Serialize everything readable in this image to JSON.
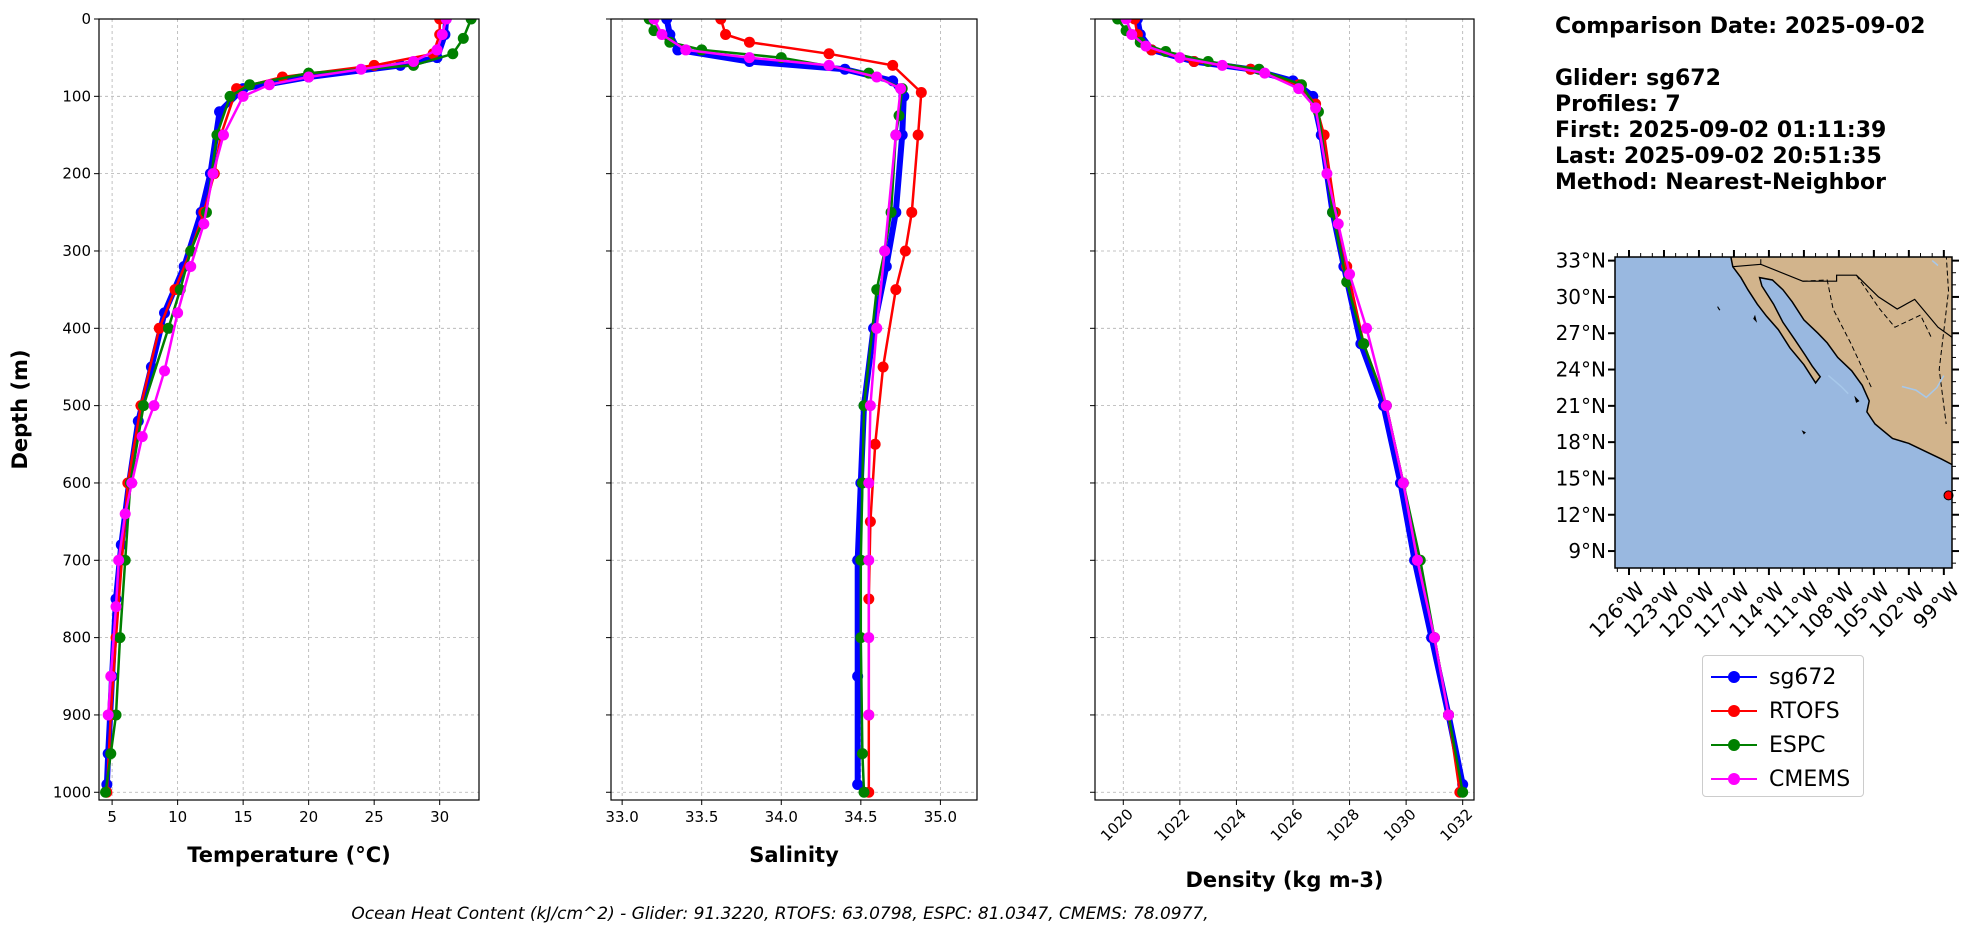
{
  "info": {
    "comparison_date": "Comparison Date: 2025-09-02",
    "glider": "Glider: sg672",
    "profiles": "Profiles: 7",
    "first": "First: 2025-09-02 01:11:39",
    "last": "Last: 2025-09-02 20:51:35",
    "method": "Method: Nearest-Neighbor"
  },
  "footer": "Ocean Heat Content (kJ/cm^2) - Glider: 91.3220,  RTOFS: 63.0798,  ESPC: 81.0347,  CMEMS: 78.0977,",
  "colors": {
    "sg672": "#0000ff",
    "RTOFS": "#ff0000",
    "ESPC": "#008000",
    "CMEMS": "#ff00ff",
    "glider_raw": "#00ffff",
    "ocean": "#99b8e0",
    "land": "#d2b48c"
  },
  "legend": [
    {
      "name": "sg672",
      "color": "#0000ff"
    },
    {
      "name": "RTOFS",
      "color": "#ff0000"
    },
    {
      "name": "ESPC",
      "color": "#008000"
    },
    {
      "name": "CMEMS",
      "color": "#ff00ff"
    }
  ],
  "chart_data": [
    {
      "type": "line",
      "xlabel": "Temperature (°C)",
      "ylabel": "Depth (m)",
      "xlim": [
        4.0,
        33.0
      ],
      "ylim": [
        1010,
        0
      ],
      "xticks": [
        5,
        10,
        15,
        20,
        25,
        30
      ],
      "yticks": [
        0,
        100,
        200,
        300,
        400,
        500,
        600,
        700,
        800,
        900,
        1000
      ],
      "grid": true,
      "series": [
        {
          "name": "sg672",
          "x": [
            30.5,
            30.4,
            29.8,
            27.0,
            20.0,
            15.0,
            13.2,
            12.5,
            11.8,
            10.5,
            9.0,
            8.0,
            7.0,
            6.3,
            5.7,
            5.3,
            5.0,
            4.7,
            4.6
          ],
          "y": [
            0,
            20,
            50,
            60,
            75,
            90,
            120,
            200,
            250,
            320,
            380,
            450,
            520,
            600,
            680,
            750,
            850,
            950,
            990
          ]
        },
        {
          "name": "RTOFS",
          "x": [
            30.0,
            30.0,
            29.5,
            25.0,
            18.0,
            14.5,
            13.3,
            12.8,
            12.0,
            11.0,
            9.8,
            8.6,
            7.2,
            6.2,
            5.3,
            4.9,
            4.6
          ],
          "y": [
            0,
            20,
            45,
            60,
            75,
            90,
            150,
            200,
            250,
            300,
            350,
            400,
            500,
            600,
            800,
            900,
            1000
          ]
        },
        {
          "name": "ESPC",
          "x": [
            32.4,
            31.8,
            31.0,
            28.0,
            20.0,
            15.5,
            14.0,
            13.0,
            12.2,
            11.0,
            10.2,
            9.3,
            7.4,
            6.4,
            6.0,
            5.6,
            5.3,
            4.9,
            4.5
          ],
          "y": [
            0,
            25,
            45,
            60,
            70,
            85,
            100,
            150,
            250,
            300,
            350,
            400,
            500,
            600,
            700,
            800,
            900,
            950,
            1000
          ]
        },
        {
          "name": "CMEMS",
          "x": [
            30.5,
            30.2,
            29.8,
            28.0,
            24.0,
            20.0,
            17.0,
            15.0,
            13.5,
            12.7,
            12.0,
            11.0,
            10.0,
            9.0,
            8.2,
            7.3,
            6.5,
            6.0,
            5.5,
            5.3,
            4.9,
            4.7
          ],
          "y": [
            0,
            20,
            40,
            55,
            65,
            75,
            85,
            100,
            150,
            200,
            265,
            320,
            380,
            455,
            500,
            540,
            600,
            640,
            700,
            760,
            850,
            900
          ]
        }
      ]
    },
    {
      "type": "line",
      "xlabel": "Salinity",
      "xlim": [
        32.93,
        35.23
      ],
      "ylim": [
        1010,
        0
      ],
      "xticks": [
        33.0,
        33.5,
        34.0,
        34.5,
        35.0
      ],
      "yticks": [
        0,
        100,
        200,
        300,
        400,
        500,
        600,
        700,
        800,
        900,
        1000
      ],
      "grid": true,
      "series": [
        {
          "name": "sg672",
          "x": [
            33.28,
            33.3,
            33.35,
            33.8,
            34.4,
            34.7,
            34.77,
            34.76,
            34.72,
            34.66,
            34.58,
            34.52,
            34.5,
            34.48,
            34.48,
            34.48
          ],
          "y": [
            0,
            20,
            40,
            55,
            65,
            80,
            100,
            150,
            250,
            320,
            400,
            500,
            600,
            700,
            850,
            990
          ]
        },
        {
          "name": "RTOFS",
          "x": [
            33.62,
            33.65,
            33.8,
            34.3,
            34.7,
            34.88,
            34.86,
            34.82,
            34.78,
            34.72,
            34.64,
            34.59,
            34.56,
            34.55,
            34.55,
            34.55
          ],
          "y": [
            0,
            20,
            30,
            45,
            60,
            95,
            150,
            250,
            300,
            350,
            450,
            550,
            650,
            750,
            900,
            1000
          ]
        },
        {
          "name": "ESPC",
          "x": [
            33.17,
            33.2,
            33.3,
            33.5,
            34.0,
            34.55,
            34.76,
            34.74,
            34.72,
            34.69,
            34.65,
            34.6,
            34.52,
            34.51,
            34.5,
            34.5,
            34.51,
            34.52
          ],
          "y": [
            0,
            15,
            30,
            40,
            50,
            70,
            90,
            125,
            150,
            250,
            300,
            350,
            500,
            600,
            700,
            800,
            950,
            1000
          ]
        },
        {
          "name": "CMEMS",
          "x": [
            33.2,
            33.25,
            33.4,
            33.8,
            34.3,
            34.6,
            34.75,
            34.72,
            34.65,
            34.6,
            34.56,
            34.55,
            34.55,
            34.55,
            34.55
          ],
          "y": [
            0,
            20,
            40,
            50,
            60,
            75,
            90,
            150,
            300,
            400,
            500,
            600,
            700,
            800,
            900
          ]
        }
      ]
    },
    {
      "type": "line",
      "xlabel": "Density (kg m-3)",
      "xlim": [
        1019.0,
        1032.4
      ],
      "ylim": [
        1010,
        0
      ],
      "xticks": [
        1020,
        1022,
        1024,
        1026,
        1028,
        1030,
        1032
      ],
      "yticks": [
        0,
        100,
        200,
        300,
        400,
        500,
        600,
        700,
        800,
        900,
        1000
      ],
      "grid": true,
      "series": [
        {
          "name": "sg672",
          "x": [
            1020.5,
            1020.6,
            1021.0,
            1022.5,
            1024.5,
            1026.0,
            1026.7,
            1027.0,
            1027.4,
            1027.8,
            1028.4,
            1029.2,
            1029.8,
            1030.3,
            1030.9,
            1031.5,
            1032.0
          ],
          "y": [
            0,
            20,
            40,
            55,
            65,
            80,
            100,
            150,
            250,
            320,
            420,
            500,
            600,
            700,
            800,
            900,
            990
          ]
        },
        {
          "name": "RTOFS",
          "x": [
            1020.4,
            1020.5,
            1021.0,
            1022.5,
            1024.5,
            1026.2,
            1026.8,
            1027.1,
            1027.5,
            1027.9,
            1028.5,
            1029.3,
            1029.9,
            1030.4,
            1031.0,
            1031.5,
            1031.9
          ],
          "y": [
            0,
            20,
            40,
            55,
            65,
            85,
            110,
            150,
            250,
            320,
            420,
            500,
            600,
            700,
            800,
            900,
            1000
          ]
        },
        {
          "name": "ESPC",
          "x": [
            1019.8,
            1020.1,
            1020.6,
            1021.5,
            1023.0,
            1024.8,
            1026.3,
            1026.9,
            1027.4,
            1027.9,
            1028.5,
            1029.3,
            1029.9,
            1030.5,
            1031.0,
            1031.5,
            1032.0
          ],
          "y": [
            0,
            15,
            30,
            42,
            55,
            65,
            85,
            120,
            250,
            340,
            420,
            500,
            600,
            700,
            800,
            900,
            1000
          ]
        },
        {
          "name": "CMEMS",
          "x": [
            1020.1,
            1020.3,
            1020.8,
            1022.0,
            1023.5,
            1025.0,
            1026.2,
            1026.8,
            1027.2,
            1027.6,
            1028.0,
            1028.6,
            1029.3,
            1029.9,
            1030.4,
            1031.0,
            1031.5
          ],
          "y": [
            0,
            20,
            35,
            50,
            60,
            70,
            90,
            115,
            200,
            265,
            330,
            400,
            500,
            600,
            700,
            800,
            900
          ]
        }
      ]
    }
  ],
  "map": {
    "lat_ticks": [
      "33°N",
      "30°N",
      "27°N",
      "24°N",
      "21°N",
      "18°N",
      "15°N",
      "12°N",
      "9°N"
    ],
    "lat_values": [
      33,
      30,
      27,
      24,
      21,
      18,
      15,
      12,
      9
    ],
    "lon_ticks": [
      "126°W",
      "123°W",
      "120°W",
      "117°W",
      "114°W",
      "111°W",
      "108°W",
      "105°W",
      "102°W",
      "99°W"
    ],
    "lon_values": [
      -126,
      -123,
      -120,
      -117,
      -114,
      -111,
      -108,
      -105,
      -102,
      -99
    ],
    "extent": {
      "lon_min": -127.2,
      "lon_max": -98.3,
      "lat_min": 7.6,
      "lat_max": 33.3
    },
    "glider_position": {
      "lon": -98.6,
      "lat": 13.6
    }
  }
}
